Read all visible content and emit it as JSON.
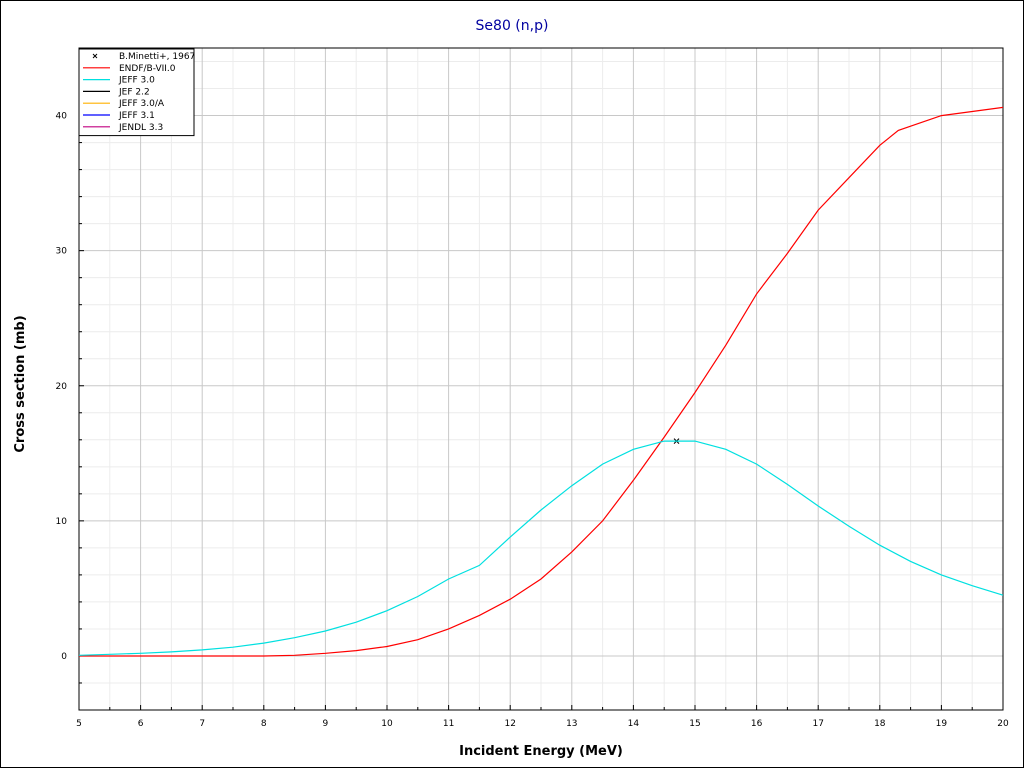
{
  "chart_data": {
    "type": "line",
    "title": "Se80 (n,p)",
    "xlabel": "Incident Energy (MeV)",
    "ylabel": "Cross section (mb)",
    "xlim": [
      5,
      20
    ],
    "ylim": [
      -4,
      45
    ],
    "x_ticks": [
      5,
      6,
      7,
      8,
      9,
      10,
      11,
      12,
      13,
      14,
      15,
      16,
      17,
      18,
      19,
      20
    ],
    "y_ticks": [
      0,
      10,
      20,
      30,
      40
    ],
    "grid": true,
    "legend_position": "top-left",
    "series": [
      {
        "name": "B.Minetti+, 1967",
        "kind": "points",
        "marker": "x",
        "color": "#000000",
        "x": [
          14.7
        ],
        "y": [
          15.9
        ]
      },
      {
        "name": "ENDF/B-VII.0",
        "kind": "line",
        "color": "#ff0000",
        "x": [
          5,
          6,
          7,
          8,
          8.5,
          9,
          9.5,
          10,
          10.5,
          11,
          11.5,
          12,
          12.5,
          13,
          13.5,
          14,
          14.5,
          15,
          15.5,
          16,
          16.5,
          17,
          17.5,
          18,
          18.3,
          19,
          19.5,
          20
        ],
        "y": [
          0,
          0,
          0,
          0,
          0.05,
          0.2,
          0.4,
          0.7,
          1.2,
          2.0,
          3.0,
          4.2,
          5.7,
          7.7,
          10.0,
          13.0,
          16.2,
          19.5,
          23.0,
          26.8,
          29.8,
          33.0,
          35.4,
          37.8,
          38.9,
          40.0,
          40.3,
          40.6
        ]
      },
      {
        "name": "JEFF 3.0",
        "kind": "line",
        "color": "#00e0e0",
        "x": [
          5,
          5.5,
          6,
          6.5,
          7,
          7.5,
          8,
          8.5,
          9,
          9.5,
          10,
          10.5,
          11,
          11.5,
          12,
          12.5,
          13,
          13.5,
          14,
          14.5,
          15,
          15.5,
          16,
          16.5,
          17,
          17.5,
          18,
          18.5,
          19,
          19.5,
          20
        ],
        "y": [
          0.05,
          0.12,
          0.2,
          0.3,
          0.45,
          0.65,
          0.95,
          1.35,
          1.85,
          2.5,
          3.35,
          4.4,
          5.7,
          6.7,
          8.8,
          10.8,
          12.6,
          14.2,
          15.3,
          15.9,
          15.9,
          15.3,
          14.2,
          12.7,
          11.1,
          9.6,
          8.2,
          7.0,
          6.0,
          5.2,
          4.5
        ]
      }
    ],
    "legend": [
      {
        "label": "B.Minetti+, 1967",
        "color": "#000000",
        "marker": "x"
      },
      {
        "label": "ENDF/B-VII.0",
        "color": "#ff0000",
        "marker": "line"
      },
      {
        "label": "JEFF 3.0",
        "color": "#00e0e0",
        "marker": "line"
      },
      {
        "label": "JEF 2.2",
        "color": "#000000",
        "marker": "line"
      },
      {
        "label": "JEFF 3.0/A",
        "color": "#ffb000",
        "marker": "line"
      },
      {
        "label": "JEFF 3.1",
        "color": "#0000ff",
        "marker": "line"
      },
      {
        "label": "JENDL 3.3",
        "color": "#c00080",
        "marker": "line"
      }
    ]
  }
}
